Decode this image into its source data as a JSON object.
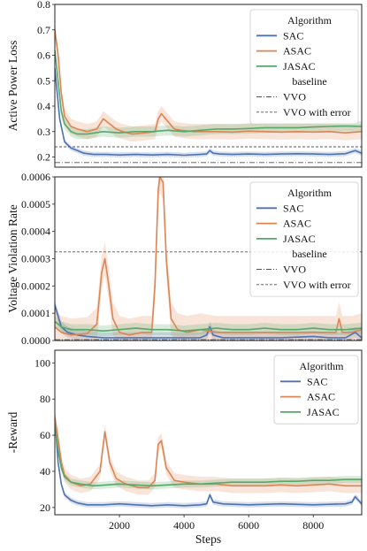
{
  "chart_data": [
    {
      "type": "line",
      "ylabel": "Active Power Loss",
      "xlim": [
        0,
        9500
      ],
      "ylim": [
        0.16,
        0.8
      ],
      "yticks": [
        "0.2",
        "0.3",
        "0.4",
        "0.5",
        "0.6",
        "0.7",
        "0.8"
      ],
      "ytick_values": [
        0.2,
        0.3,
        0.4,
        0.5,
        0.6,
        0.7,
        0.8
      ],
      "xticks": [],
      "grid": false,
      "legend": {
        "title": "Algorithm",
        "entries": [
          "SAC",
          "ASAC",
          "JASAC"
        ],
        "subtitle": "baseline",
        "baseline_entries": [
          "VVO",
          "VVO with error"
        ],
        "position": "top-right"
      },
      "series": [
        {
          "name": "SAC",
          "color": "#4C72B0",
          "band": 0.01,
          "x": [
            0,
            150,
            300,
            500,
            700,
            900,
            1200,
            1600,
            2000,
            2500,
            3000,
            3500,
            4000,
            4500,
            4700,
            4800,
            4900,
            5100,
            5500,
            6000,
            6500,
            7000,
            7500,
            8000,
            8500,
            9000,
            9300,
            9500
          ],
          "y": [
            0.55,
            0.35,
            0.26,
            0.235,
            0.225,
            0.215,
            0.21,
            0.21,
            0.208,
            0.21,
            0.208,
            0.21,
            0.207,
            0.21,
            0.212,
            0.225,
            0.215,
            0.212,
            0.21,
            0.212,
            0.21,
            0.212,
            0.213,
            0.212,
            0.21,
            0.213,
            0.225,
            0.215
          ]
        },
        {
          "name": "ASAC",
          "color": "#DD8452",
          "band": 0.03,
          "x": [
            0,
            100,
            200,
            300,
            500,
            700,
            1000,
            1300,
            1500,
            1700,
            1900,
            2100,
            2400,
            2800,
            3100,
            3200,
            3300,
            3500,
            3700,
            3900,
            4300,
            5000,
            5500,
            6000,
            6500,
            7000,
            7500,
            8000,
            8500,
            9000,
            9500
          ],
          "y": [
            0.7,
            0.6,
            0.45,
            0.36,
            0.32,
            0.31,
            0.3,
            0.31,
            0.35,
            0.33,
            0.31,
            0.3,
            0.29,
            0.295,
            0.3,
            0.35,
            0.37,
            0.34,
            0.31,
            0.305,
            0.3,
            0.3,
            0.298,
            0.302,
            0.3,
            0.298,
            0.3,
            0.298,
            0.3,
            0.295,
            0.3
          ]
        },
        {
          "name": "JASAC",
          "color": "#55A868",
          "band": 0.02,
          "x": [
            0,
            100,
            200,
            300,
            500,
            700,
            1000,
            1500,
            2000,
            2500,
            3000,
            3500,
            4000,
            4500,
            5000,
            5500,
            6000,
            6500,
            7000,
            7500,
            8000,
            8500,
            9000,
            9500
          ],
          "y": [
            0.62,
            0.5,
            0.38,
            0.33,
            0.3,
            0.29,
            0.29,
            0.3,
            0.295,
            0.3,
            0.3,
            0.305,
            0.3,
            0.305,
            0.31,
            0.31,
            0.312,
            0.315,
            0.315,
            0.315,
            0.318,
            0.32,
            0.322,
            0.32
          ]
        }
      ],
      "baselines": [
        {
          "name": "VVO",
          "value": 0.178,
          "color": "#555555",
          "dash": "dashdot"
        },
        {
          "name": "VVO with error",
          "value": 0.24,
          "color": "#555555",
          "dash": "dashed"
        }
      ]
    },
    {
      "type": "line",
      "ylabel": "Voltage Violation Rate",
      "xlim": [
        0,
        9500
      ],
      "ylim": [
        0,
        0.0006
      ],
      "yticks": [
        "0.0000",
        "0.0001",
        "0.0002",
        "0.0003",
        "0.0004",
        "0.0005",
        "0.0006"
      ],
      "ytick_values": [
        0,
        0.0001,
        0.0002,
        0.0003,
        0.0004,
        0.0005,
        0.0006
      ],
      "xticks": [],
      "grid": false,
      "legend": {
        "title": "Algorithm",
        "entries": [
          "SAC",
          "ASAC",
          "JASAC"
        ],
        "subtitle": "baseline",
        "baseline_entries": [
          "VVO",
          "VVO with error"
        ],
        "position": "top-right"
      },
      "series": [
        {
          "name": "SAC",
          "color": "#4C72B0",
          "band": 2e-05,
          "x": [
            0,
            100,
            200,
            400,
            700,
            1000,
            1500,
            2000,
            2500,
            3000,
            3500,
            4000,
            4500,
            4700,
            4800,
            4900,
            5200,
            6000,
            7000,
            8000,
            8500,
            9000,
            9300,
            9500
          ],
          "y": [
            0.00013,
            9e-05,
            5e-05,
            3e-05,
            2e-05,
            1.5e-05,
            1e-05,
            1e-05,
            1e-05,
            1e-05,
            1e-05,
            1e-05,
            1e-05,
            2e-05,
            5e-05,
            2e-05,
            1e-05,
            1e-05,
            1e-05,
            1.5e-05,
            1e-05,
            1e-05,
            3e-05,
            1e-05
          ]
        },
        {
          "name": "ASAC",
          "color": "#DD8452",
          "band": 6e-05,
          "x": [
            0,
            200,
            500,
            1000,
            1300,
            1450,
            1550,
            1650,
            1800,
            2000,
            2300,
            2700,
            3000,
            3100,
            3200,
            3250,
            3350,
            3450,
            3600,
            3800,
            4100,
            4500,
            5000,
            6000,
            7000,
            8000,
            8700,
            8800,
            8900,
            9200,
            9500
          ],
          "y": [
            5e-05,
            3e-05,
            2e-05,
            2.5e-05,
            6e-05,
            0.00025,
            0.0003,
            0.00022,
            8e-05,
            3e-05,
            2e-05,
            3e-05,
            3e-05,
            0.0002,
            0.00055,
            0.0006,
            0.00058,
            0.0003,
            8e-05,
            4e-05,
            3e-05,
            4e-05,
            3e-05,
            3e-05,
            3e-05,
            3e-05,
            3e-05,
            8e-05,
            3e-05,
            3e-05,
            4e-05
          ]
        },
        {
          "name": "JASAC",
          "color": "#55A868",
          "band": 2e-05,
          "x": [
            0,
            200,
            500,
            1000,
            1500,
            2000,
            2500,
            3000,
            3500,
            4000,
            4500,
            5000,
            5500,
            6000,
            6500,
            7000,
            7500,
            8000,
            8500,
            9000,
            9500
          ],
          "y": [
            7e-05,
            5e-05,
            4e-05,
            4e-05,
            3.5e-05,
            4e-05,
            4.5e-05,
            4e-05,
            4e-05,
            3.5e-05,
            4e-05,
            4.5e-05,
            4e-05,
            4e-05,
            4.5e-05,
            4e-05,
            4e-05,
            4.5e-05,
            4e-05,
            4e-05,
            4.5e-05
          ]
        }
      ],
      "baselines": [
        {
          "name": "VVO",
          "value": 3e-06,
          "color": "#555555",
          "dash": "dashdot"
        },
        {
          "name": "VVO with error",
          "value": 0.000325,
          "color": "#555555",
          "dash": "dashed"
        }
      ]
    },
    {
      "type": "line",
      "ylabel": "-Reward",
      "xlabel": "Steps",
      "xlim": [
        0,
        9500
      ],
      "ylim": [
        16,
        107
      ],
      "yticks": [
        "20",
        "40",
        "60",
        "80",
        "100"
      ],
      "ytick_values": [
        20,
        40,
        60,
        80,
        100
      ],
      "xticks": [
        "2000",
        "4000",
        "6000",
        "8000"
      ],
      "xtick_values": [
        2000,
        4000,
        6000,
        8000
      ],
      "grid": false,
      "legend": {
        "title": "Algorithm",
        "entries": [
          "SAC",
          "ASAC",
          "JASAC"
        ],
        "position": "top-right"
      },
      "series": [
        {
          "name": "SAC",
          "color": "#4C72B0",
          "band": 1.5,
          "x": [
            0,
            100,
            200,
            300,
            500,
            700,
            1000,
            1500,
            2000,
            2500,
            3000,
            3500,
            4000,
            4500,
            4700,
            4800,
            4900,
            5200,
            6000,
            7000,
            8000,
            9000,
            9200,
            9300,
            9500
          ],
          "y": [
            70,
            45,
            33,
            27,
            24,
            22.5,
            21.5,
            21.5,
            22,
            21.5,
            21,
            21.5,
            21,
            21.5,
            22,
            27,
            23,
            22,
            21.5,
            22,
            21.5,
            22,
            23,
            26,
            22
          ]
        },
        {
          "name": "ASAC",
          "color": "#DD8452",
          "band": 4,
          "x": [
            0,
            100,
            200,
            300,
            500,
            800,
            1100,
            1400,
            1550,
            1700,
            1900,
            2200,
            2600,
            2900,
            3100,
            3200,
            3300,
            3450,
            3700,
            4000,
            4500,
            5000,
            5500,
            6000,
            6500,
            7000,
            7500,
            8000,
            8500,
            9000,
            9500
          ],
          "y": [
            70,
            58,
            45,
            38,
            34,
            32,
            33,
            40,
            62,
            45,
            36,
            33,
            31,
            31,
            35,
            55,
            57,
            42,
            35,
            34,
            33,
            33,
            32,
            32,
            32,
            32.5,
            32,
            32.5,
            33,
            32,
            32
          ]
        },
        {
          "name": "JASAC",
          "color": "#55A868",
          "band": 2,
          "x": [
            0,
            100,
            200,
            300,
            500,
            800,
            1200,
            1600,
            2000,
            2500,
            3000,
            3500,
            4000,
            4500,
            5000,
            5500,
            6000,
            6500,
            7000,
            7500,
            8000,
            8500,
            9000,
            9500
          ],
          "y": [
            65,
            52,
            42,
            37,
            34,
            33,
            32,
            32.5,
            33,
            32.5,
            32,
            32.5,
            33,
            33,
            33.5,
            34,
            34,
            34,
            34.5,
            34.5,
            35,
            35,
            35.5,
            35.5
          ]
        }
      ],
      "baselines": []
    }
  ]
}
